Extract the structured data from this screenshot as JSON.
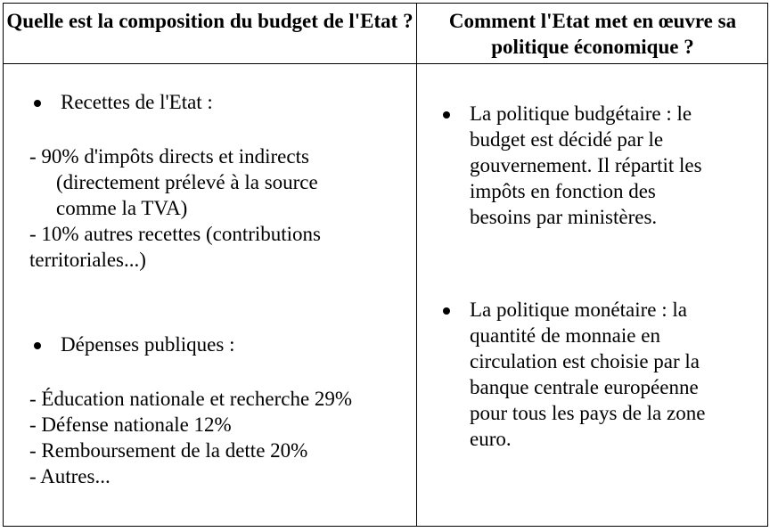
{
  "header": {
    "left_title": "Quelle est la composition du budget de l'Etat ?",
    "right_title": "Comment l'Etat met en œuvre sa politique économique ?"
  },
  "left": {
    "recettes_heading": "Recettes de l'Etat :",
    "recettes_lines": [
      "- 90% d'impôts directs et indirects",
      "(directement prélevé à la source",
      "comme la TVA)",
      "- 10% autres recettes (contributions",
      "territoriales...)"
    ],
    "depenses_heading": "Dépenses publiques :",
    "depenses_lines": [
      "- Éducation nationale et recherche 29%",
      "- Défense nationale 12%",
      "- Remboursement de la dette 20%",
      "- Autres..."
    ]
  },
  "right": {
    "budget_lines": [
      "La politique budgétaire : le",
      "budget est décidé par le",
      "gouvernement. Il répartit les",
      "impôts en fonction des",
      "besoins par ministères."
    ],
    "monetaire_lines": [
      "La politique monétaire : la",
      "quantité de monnaie en",
      "circulation est choisie par la",
      "banque centrale européenne",
      "pour tous les pays de la zone",
      "euro."
    ]
  }
}
